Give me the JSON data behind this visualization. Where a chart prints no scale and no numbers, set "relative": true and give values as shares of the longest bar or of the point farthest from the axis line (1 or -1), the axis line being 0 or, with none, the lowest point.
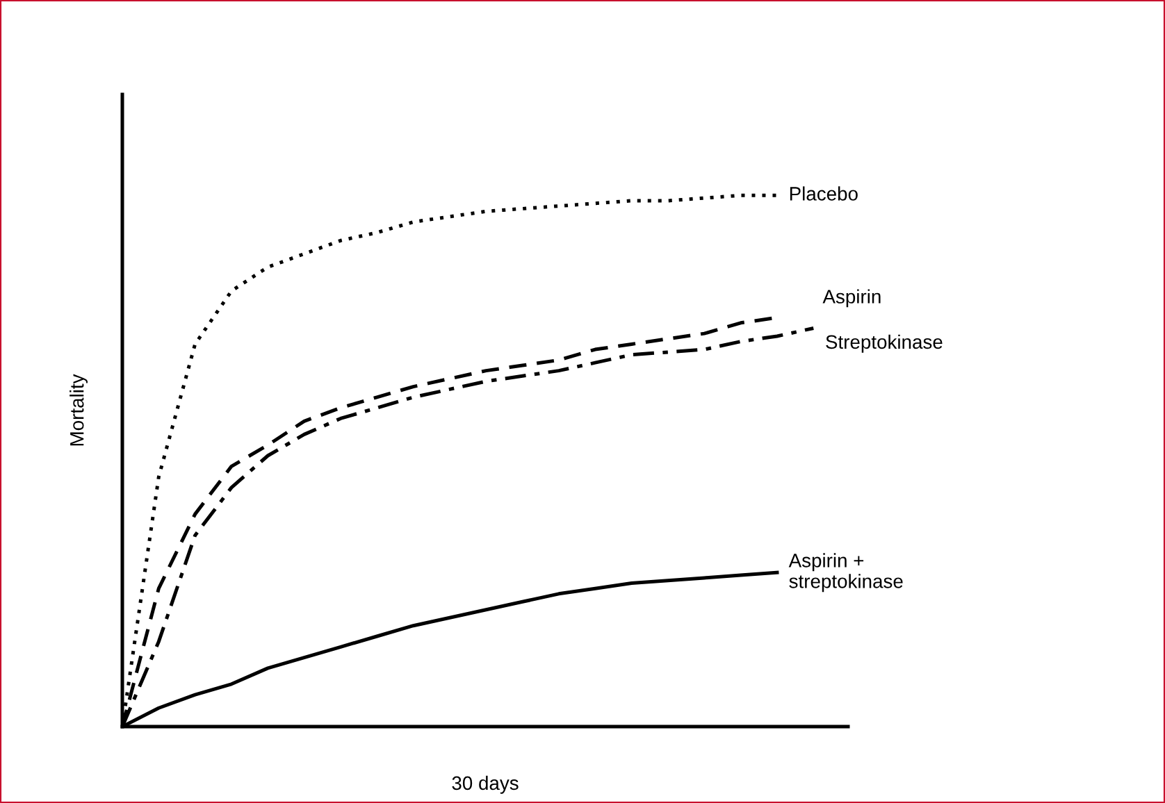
{
  "chart_data": {
    "type": "line",
    "relative": true,
    "xlabel": "30 days",
    "ylabel": "Mortality",
    "marker": "none",
    "categories": [
      null,
      null,
      null,
      null,
      null,
      null,
      null,
      null,
      null,
      null,
      null,
      null,
      null,
      null,
      null,
      null,
      null,
      null,
      null,
      null
    ],
    "series": [
      {
        "name": "Placebo",
        "color": "#000000",
        "line_style": "dotted",
        "values": [
          0,
          0.47,
          0.72,
          0.82,
          0.865,
          0.89,
          0.915,
          0.93,
          0.95,
          0.96,
          0.97,
          0.975,
          0.98,
          0.985,
          0.99,
          0.99,
          0.995,
          1.0,
          1.0,
          null
        ]
      },
      {
        "name": "Aspirin",
        "color": "#000000",
        "line_style": "dashed",
        "values": [
          0,
          0.26,
          0.4,
          0.49,
          0.53,
          0.575,
          0.6,
          0.62,
          0.64,
          0.655,
          0.67,
          0.68,
          0.69,
          0.71,
          0.72,
          0.73,
          0.74,
          0.76,
          0.77,
          null
        ]
      },
      {
        "name": "Streptokinase",
        "color": "#000000",
        "line_style": "dashdot",
        "values": [
          0,
          0.16,
          0.36,
          0.45,
          0.51,
          0.55,
          0.58,
          0.6,
          0.62,
          0.635,
          0.65,
          0.66,
          0.67,
          0.685,
          0.7,
          0.705,
          0.71,
          0.725,
          0.735,
          0.75
        ]
      },
      {
        "name": "Aspirin +\nstreptokinase",
        "color": "#000000",
        "line_style": "solid",
        "values": [
          0,
          0.035,
          0.06,
          0.08,
          0.11,
          0.13,
          0.15,
          0.17,
          0.19,
          0.205,
          0.22,
          0.235,
          0.25,
          0.26,
          0.27,
          0.275,
          0.28,
          0.285,
          0.29,
          null
        ]
      }
    ]
  }
}
